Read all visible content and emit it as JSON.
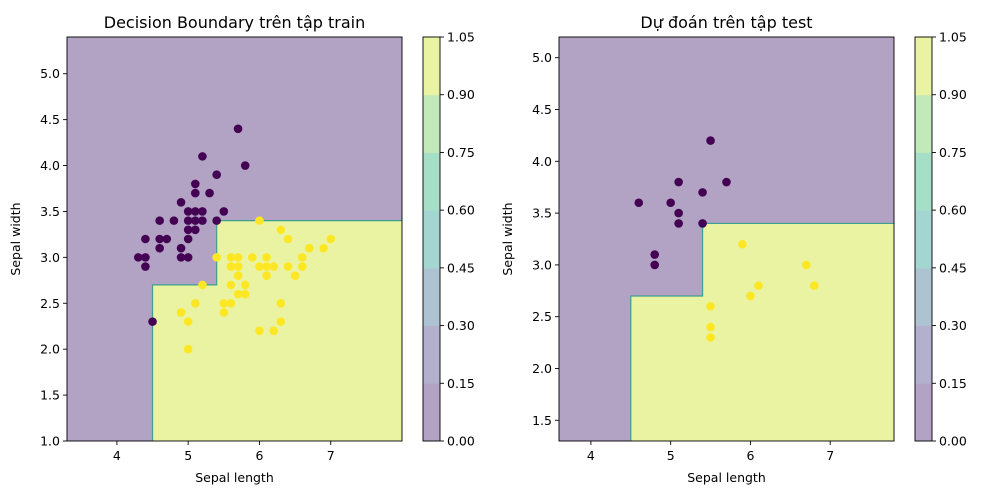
{
  "chart_data": [
    {
      "type": "scatter",
      "title": "Decision Boundary trên tập train",
      "xlabel": "Sepal length",
      "ylabel": "Sepal width",
      "xlim": [
        3.3,
        8.0
      ],
      "ylim": [
        1.0,
        5.4
      ],
      "xticks": [
        4,
        5,
        6,
        7
      ],
      "yticks": [
        1.0,
        1.5,
        2.0,
        2.5,
        3.0,
        3.5,
        4.0,
        4.5,
        5.0
      ],
      "grid": false,
      "boundary": {
        "class1_region": [
          [
            4.5,
            1.0
          ],
          [
            4.5,
            2.7
          ],
          [
            5.4,
            2.7
          ],
          [
            5.4,
            3.4
          ],
          [
            8.0,
            3.4
          ],
          [
            8.0,
            1.0
          ]
        ],
        "class0_color": "#b2a3c4",
        "class1_color": "#eaf3a2",
        "line_color": "#3f9f8f"
      },
      "series": [
        {
          "class": 0,
          "color": "#440154",
          "points": [
            [
              4.3,
              3.0
            ],
            [
              4.4,
              3.0
            ],
            [
              4.4,
              3.2
            ],
            [
              4.4,
              2.9
            ],
            [
              4.5,
              2.3
            ],
            [
              4.6,
              3.1
            ],
            [
              4.6,
              3.2
            ],
            [
              4.6,
              3.4
            ],
            [
              4.7,
              3.2
            ],
            [
              4.8,
              3.4
            ],
            [
              4.9,
              3.6
            ],
            [
              4.9,
              3.1
            ],
            [
              4.9,
              3.0
            ],
            [
              5.0,
              3.5
            ],
            [
              5.0,
              3.4
            ],
            [
              5.0,
              3.3
            ],
            [
              5.0,
              3.2
            ],
            [
              5.0,
              3.0
            ],
            [
              5.1,
              3.8
            ],
            [
              5.1,
              3.7
            ],
            [
              5.1,
              3.5
            ],
            [
              5.1,
              3.4
            ],
            [
              5.1,
              3.3
            ],
            [
              5.2,
              4.1
            ],
            [
              5.2,
              3.5
            ],
            [
              5.2,
              3.4
            ],
            [
              5.3,
              3.7
            ],
            [
              5.4,
              3.9
            ],
            [
              5.4,
              3.4
            ],
            [
              5.5,
              3.5
            ],
            [
              5.7,
              4.4
            ],
            [
              5.8,
              4.0
            ]
          ]
        },
        {
          "class": 1,
          "color": "#fde725",
          "points": [
            [
              4.9,
              2.4
            ],
            [
              5.0,
              2.3
            ],
            [
              5.0,
              2.0
            ],
            [
              5.1,
              2.5
            ],
            [
              5.2,
              2.7
            ],
            [
              5.4,
              3.0
            ],
            [
              5.5,
              2.5
            ],
            [
              5.5,
              2.4
            ],
            [
              5.6,
              3.0
            ],
            [
              5.6,
              2.9
            ],
            [
              5.6,
              2.7
            ],
            [
              5.6,
              2.5
            ],
            [
              5.7,
              3.0
            ],
            [
              5.7,
              2.9
            ],
            [
              5.7,
              2.8
            ],
            [
              5.7,
              2.6
            ],
            [
              5.8,
              2.7
            ],
            [
              5.8,
              2.6
            ],
            [
              5.9,
              3.0
            ],
            [
              6.0,
              3.4
            ],
            [
              6.0,
              2.9
            ],
            [
              6.0,
              2.2
            ],
            [
              6.1,
              3.0
            ],
            [
              6.1,
              2.9
            ],
            [
              6.1,
              2.8
            ],
            [
              6.2,
              2.9
            ],
            [
              6.2,
              2.2
            ],
            [
              6.3,
              3.3
            ],
            [
              6.3,
              2.5
            ],
            [
              6.3,
              2.3
            ],
            [
              6.4,
              3.2
            ],
            [
              6.4,
              2.9
            ],
            [
              6.5,
              2.8
            ],
            [
              6.6,
              3.0
            ],
            [
              6.6,
              2.9
            ],
            [
              6.7,
              3.1
            ],
            [
              6.9,
              3.1
            ],
            [
              7.0,
              3.2
            ]
          ]
        }
      ],
      "colorbar": {
        "ticks": [
          "0.00",
          "0.15",
          "0.30",
          "0.45",
          "0.60",
          "0.75",
          "0.90",
          "1.05"
        ],
        "colors": [
          "#b2a3c4",
          "#b2b0cc",
          "#aec3d1",
          "#a3d5d1",
          "#a6dfc8",
          "#c2e9b9",
          "#eaf3a2"
        ]
      }
    },
    {
      "type": "scatter",
      "title": "Dự đoán trên tập test",
      "xlabel": "Sepal length",
      "ylabel": "Sepal width",
      "xlim": [
        3.6,
        7.8
      ],
      "ylim": [
        1.3,
        5.2
      ],
      "xticks": [
        4,
        5,
        6,
        7
      ],
      "yticks": [
        1.5,
        2.0,
        2.5,
        3.0,
        3.5,
        4.0,
        4.5,
        5.0
      ],
      "grid": false,
      "boundary": {
        "class1_region": [
          [
            4.5,
            1.3
          ],
          [
            4.5,
            2.7
          ],
          [
            5.4,
            2.7
          ],
          [
            5.4,
            3.4
          ],
          [
            7.8,
            3.4
          ],
          [
            7.8,
            1.3
          ]
        ],
        "class0_color": "#b2a3c4",
        "class1_color": "#eaf3a2",
        "line_color": "#3f9f8f"
      },
      "series": [
        {
          "class": 0,
          "color": "#440154",
          "points": [
            [
              4.6,
              3.6
            ],
            [
              4.8,
              3.1
            ],
            [
              4.8,
              3.0
            ],
            [
              5.0,
              3.6
            ],
            [
              5.1,
              3.8
            ],
            [
              5.1,
              3.5
            ],
            [
              5.1,
              3.4
            ],
            [
              5.4,
              3.7
            ],
            [
              5.4,
              3.4
            ],
            [
              5.5,
              4.2
            ],
            [
              5.7,
              3.8
            ]
          ]
        },
        {
          "class": 1,
          "color": "#fde725",
          "points": [
            [
              5.5,
              2.6
            ],
            [
              5.5,
              2.4
            ],
            [
              5.5,
              2.3
            ],
            [
              5.9,
              3.2
            ],
            [
              6.0,
              2.7
            ],
            [
              6.1,
              2.8
            ],
            [
              6.7,
              3.0
            ],
            [
              6.8,
              2.8
            ]
          ]
        }
      ],
      "colorbar": {
        "ticks": [
          "0.00",
          "0.15",
          "0.30",
          "0.45",
          "0.60",
          "0.75",
          "0.90",
          "1.05"
        ],
        "colors": [
          "#b2a3c4",
          "#b2b0cc",
          "#aec3d1",
          "#a3d5d1",
          "#a6dfc8",
          "#c2e9b9",
          "#eaf3a2"
        ]
      }
    }
  ]
}
